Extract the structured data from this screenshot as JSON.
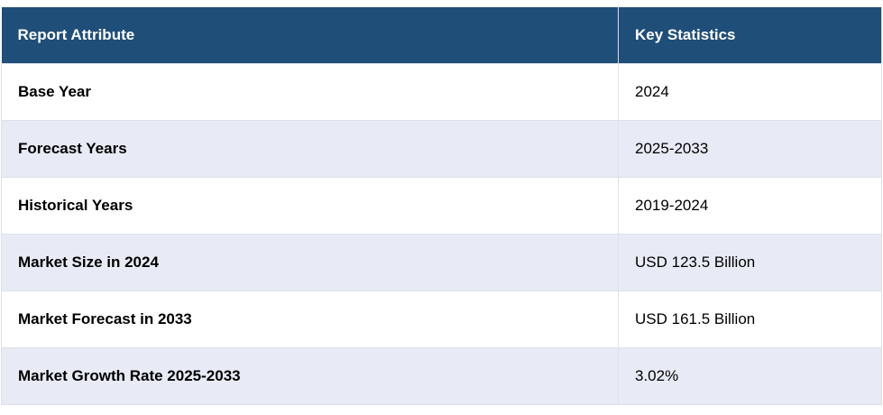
{
  "table": {
    "header": [
      "Report Attribute",
      "Key Statistics"
    ],
    "rows": [
      [
        "Base Year",
        "2024"
      ],
      [
        "Forecast Years",
        "2025-2033"
      ],
      [
        "Historical Years",
        "2019-2024"
      ],
      [
        "Market Size in 2024",
        "USD 123.5 Billion"
      ],
      [
        "Market Forecast in 2033",
        "USD 161.5 Billion"
      ],
      [
        "Market Growth Rate 2025-2033",
        "3.02%"
      ]
    ]
  }
}
